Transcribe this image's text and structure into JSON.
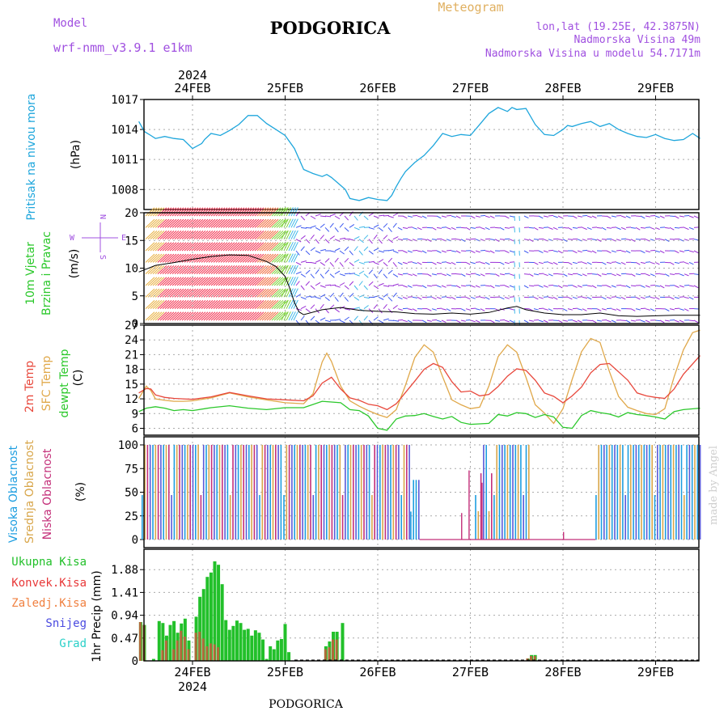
{
  "header": {
    "title": "PODGORICA",
    "meteogram": "Meteogram",
    "model_label": "Model",
    "model_name": "wrf-nmm_v3.9.1  e1km",
    "lonlat": "lon,lat (19.25E, 42.3875N)",
    "elevation": "Nadmorska Visina 49m",
    "model_elevation": "Nadmorska Visina u modelu 54.7171m",
    "year": "2024",
    "footer": "PODGORICA",
    "credit": "made by Angel"
  },
  "colors": {
    "pressure": "#1ea6dc",
    "wind_calm": "#f2304e",
    "wind_mid": "#3d59f0",
    "wind_low": "#9a2fd6",
    "t2m": "#e8483c",
    "tsfc": "#e0a84a",
    "dewp": "#2bc82b",
    "cloud_high": "#1e9ee0",
    "cloud_mid": "#d8a64a",
    "cloud_low": "#c4307a",
    "precip_total": "#22c02a",
    "precip_conv": "#e83838",
    "precip_frz": "#f08040",
    "snow": "#4a4ae0",
    "hail": "#2ad0c8",
    "purple_text": "#a050e0",
    "orange_text": "#e0b060"
  },
  "chart_data": [
    {
      "type": "line",
      "panel": "pressure",
      "ylabel_left": "Pritisak na nivou mora",
      "unit": "(hPa)",
      "x_ticks": [
        "24FEB",
        "25FEB",
        "26FEB",
        "27FEB",
        "28FEB",
        "29FEB"
      ],
      "yticks": [
        1008,
        1011,
        1014,
        1017
      ],
      "ylim": [
        1006,
        1017
      ],
      "series": [
        {
          "x": [
            -0.58,
            -0.52,
            -0.45,
            -0.4,
            -0.3,
            -0.2,
            -0.1,
            0.0,
            0.1,
            0.13,
            0.2,
            0.3,
            0.4,
            0.5,
            0.6,
            0.7,
            0.8,
            0.9,
            1.0,
            1.1,
            1.2,
            1.3,
            1.4,
            1.45,
            1.5,
            1.6,
            1.65,
            1.7,
            1.8,
            1.9,
            2.0,
            2.1,
            2.15,
            2.2,
            2.25,
            2.3,
            2.4,
            2.5,
            2.6,
            2.7,
            2.8,
            2.9,
            3.0,
            3.1,
            3.2,
            3.3,
            3.4,
            3.45,
            3.5,
            3.6,
            3.7,
            3.8,
            3.9,
            4.0,
            4.05,
            4.1,
            4.2,
            4.3,
            4.4,
            4.5,
            4.6,
            4.7,
            4.8,
            4.9,
            5.0,
            5.1,
            5.2,
            5.3,
            5.4,
            5.48
          ],
          "y": [
            1014.8,
            1013.8,
            1013.4,
            1013.1,
            1013.3,
            1013.1,
            1013.0,
            1012.1,
            1012.6,
            1013.0,
            1013.6,
            1013.4,
            1013.9,
            1014.5,
            1015.4,
            1015.4,
            1014.6,
            1014.0,
            1013.4,
            1012.1,
            1010.0,
            1009.6,
            1009.3,
            1009.5,
            1009.2,
            1008.4,
            1008.0,
            1007.1,
            1006.9,
            1007.2,
            1007.0,
            1006.9,
            1007.4,
            1008.3,
            1009.1,
            1009.8,
            1010.7,
            1011.4,
            1012.4,
            1013.6,
            1013.3,
            1013.5,
            1013.4,
            1014.5,
            1015.6,
            1016.2,
            1015.8,
            1016.2,
            1016.0,
            1016.1,
            1014.5,
            1013.5,
            1013.4,
            1014.0,
            1014.4,
            1014.3,
            1014.6,
            1014.8,
            1014.3,
            1014.6,
            1014.0,
            1013.6,
            1013.3,
            1013.2,
            1013.5,
            1013.1,
            1012.9,
            1013.0,
            1013.6,
            1013.1
          ]
        }
      ]
    },
    {
      "type": "line",
      "panel": "wind",
      "ylabel_left_1": "10m Vjetar",
      "ylabel_left_2": "Brzina i Pravac",
      "unit": "(m/s)",
      "compass": {
        "n": "N",
        "s": "S",
        "e": "E",
        "w": "W"
      },
      "yticks": [
        0,
        5,
        10,
        15,
        20
      ],
      "ylim": [
        0,
        20
      ],
      "series": [
        {
          "x": [
            -0.58,
            -0.4,
            -0.2,
            0.0,
            0.2,
            0.4,
            0.6,
            0.8,
            0.9,
            1.0,
            1.05,
            1.1,
            1.15,
            1.2,
            1.4,
            1.6,
            1.8,
            2.0,
            2.2,
            2.4,
            2.6,
            2.8,
            3.0,
            3.2,
            3.4,
            3.5,
            3.6,
            3.8,
            4.0,
            4.2,
            4.4,
            4.6,
            4.8,
            5.0,
            5.2,
            5.48
          ],
          "y": [
            9.3,
            10.5,
            11.0,
            11.6,
            12.1,
            12.4,
            12.3,
            11.2,
            10.3,
            8.5,
            6.4,
            3.8,
            2.1,
            1.6,
            2.5,
            2.9,
            2.4,
            2.2,
            2.1,
            1.8,
            1.7,
            1.9,
            1.7,
            2.0,
            2.8,
            3.1,
            2.5,
            1.9,
            1.6,
            1.6,
            1.9,
            1.4,
            1.3,
            1.4,
            1.5,
            1.5
          ]
        }
      ]
    },
    {
      "type": "line",
      "panel": "temperature",
      "ylabel_t2m": "2m Temp",
      "ylabel_sfc": "SFC Temp",
      "ylabel_dewp": "dewpt Temp",
      "unit": "(C)",
      "yticks": [
        6,
        9,
        12,
        15,
        18,
        21,
        24,
        27
      ],
      "ylim": [
        4.6,
        27
      ],
      "series": [
        {
          "name": "2m Temp",
          "x": [
            -0.58,
            -0.5,
            -0.45,
            -0.4,
            -0.3,
            -0.2,
            -0.1,
            0.0,
            0.2,
            0.4,
            0.6,
            0.8,
            1.0,
            1.2,
            1.3,
            1.4,
            1.5,
            1.6,
            1.7,
            1.8,
            1.9,
            2.0,
            2.1,
            2.2,
            2.3,
            2.4,
            2.5,
            2.6,
            2.7,
            2.8,
            2.9,
            3.0,
            3.1,
            3.2,
            3.3,
            3.4,
            3.5,
            3.6,
            3.7,
            3.8,
            3.9,
            4.0,
            4.1,
            4.2,
            4.3,
            4.4,
            4.5,
            4.6,
            4.7,
            4.8,
            4.9,
            5.0,
            5.1,
            5.2,
            5.3,
            5.48
          ],
          "y": [
            13.2,
            14.1,
            14.0,
            12.8,
            12.3,
            12.1,
            12.0,
            11.9,
            12.4,
            13.3,
            12.6,
            12.0,
            11.8,
            11.6,
            12.6,
            15.2,
            16.4,
            14.0,
            12.2,
            11.7,
            10.9,
            10.6,
            9.8,
            11.0,
            13.3,
            15.6,
            18.0,
            19.2,
            18.4,
            15.5,
            13.4,
            13.6,
            12.6,
            12.9,
            14.5,
            16.6,
            18.1,
            17.8,
            15.8,
            13.2,
            12.5,
            11.2,
            12.6,
            14.4,
            17.3,
            19.0,
            19.2,
            17.5,
            15.8,
            13.2,
            12.6,
            12.3,
            12.1,
            14.0,
            17.0,
            20.8
          ]
        },
        {
          "name": "SFC Temp",
          "x": [
            -0.58,
            -0.5,
            -0.45,
            -0.4,
            -0.3,
            -0.2,
            -0.1,
            0.0,
            0.2,
            0.4,
            0.6,
            0.8,
            1.0,
            1.2,
            1.3,
            1.4,
            1.45,
            1.5,
            1.6,
            1.7,
            1.8,
            1.9,
            2.0,
            2.1,
            2.2,
            2.3,
            2.4,
            2.5,
            2.6,
            2.7,
            2.8,
            2.9,
            3.0,
            3.1,
            3.2,
            3.3,
            3.4,
            3.5,
            3.6,
            3.7,
            3.8,
            3.9,
            4.0,
            4.1,
            4.2,
            4.3,
            4.4,
            4.5,
            4.6,
            4.7,
            4.8,
            4.9,
            5.0,
            5.1,
            5.2,
            5.3,
            5.4,
            5.48
          ],
          "y": [
            12.1,
            14.6,
            13.7,
            12.0,
            11.7,
            11.5,
            11.5,
            11.6,
            12.2,
            13.2,
            12.4,
            11.8,
            11.2,
            11.0,
            13.0,
            19.5,
            21.3,
            19.6,
            14.6,
            11.6,
            10.5,
            9.6,
            8.8,
            8.2,
            9.8,
            14.8,
            20.4,
            23.0,
            21.5,
            16.5,
            11.8,
            10.8,
            10.0,
            10.3,
            14.6,
            20.6,
            23.0,
            21.5,
            16.4,
            10.8,
            9.1,
            7.0,
            10.0,
            16.0,
            21.6,
            24.3,
            23.5,
            17.6,
            12.5,
            10.3,
            9.6,
            9.0,
            8.8,
            10.0,
            16.5,
            22.0,
            25.5,
            26.0
          ]
        },
        {
          "name": "dewpt Temp",
          "x": [
            -0.58,
            -0.5,
            -0.4,
            -0.3,
            -0.2,
            -0.1,
            0.0,
            0.2,
            0.4,
            0.6,
            0.8,
            1.0,
            1.2,
            1.4,
            1.6,
            1.7,
            1.8,
            1.9,
            2.0,
            2.1,
            2.2,
            2.3,
            2.4,
            2.5,
            2.6,
            2.7,
            2.8,
            2.9,
            3.0,
            3.1,
            3.2,
            3.3,
            3.4,
            3.5,
            3.6,
            3.7,
            3.8,
            3.9,
            4.0,
            4.1,
            4.2,
            4.3,
            4.4,
            4.5,
            4.6,
            4.7,
            4.8,
            4.9,
            5.0,
            5.1,
            5.2,
            5.3,
            5.48
          ],
          "y": [
            9.4,
            10.1,
            10.4,
            10.1,
            9.6,
            9.8,
            9.6,
            10.2,
            10.6,
            10.1,
            9.8,
            10.2,
            10.2,
            11.5,
            11.2,
            9.8,
            9.6,
            8.5,
            6.0,
            5.6,
            7.9,
            8.5,
            8.6,
            9.0,
            8.4,
            7.9,
            8.4,
            7.2,
            6.8,
            6.9,
            7.0,
            8.8,
            8.5,
            9.2,
            9.0,
            8.2,
            8.8,
            8.3,
            6.2,
            6.0,
            8.6,
            9.6,
            9.2,
            8.9,
            8.3,
            9.2,
            8.8,
            8.6,
            8.3,
            7.9,
            9.4,
            9.8,
            10.1
          ]
        }
      ]
    },
    {
      "type": "bar",
      "panel": "cloud",
      "ylabel_high": "Visoka Oblacnost",
      "ylabel_mid": "Srednja Oblacnost",
      "ylabel_low": "Niska Oblacnost",
      "unit": "(%)",
      "yticks": [
        0,
        25,
        50,
        75,
        100
      ],
      "ylim": [
        0,
        100
      ],
      "regions": [
        {
          "from": -0.55,
          "to": 0.95,
          "high": 100,
          "mid": 100,
          "low": 100
        },
        {
          "from": 0.98,
          "to": 2.35,
          "high": 100,
          "mid": 100,
          "low": 100
        },
        {
          "from": 2.35,
          "to": 2.45,
          "high": 63,
          "mid": 0,
          "low": 0
        },
        {
          "from": 3.05,
          "to": 3.25,
          "high": 100,
          "mid": 30,
          "low": 70
        },
        {
          "from": 3.25,
          "to": 3.65,
          "high": 100,
          "mid": 100,
          "low": 0
        },
        {
          "from": 4.35,
          "to": 5.48,
          "high": 100,
          "mid": 100,
          "low": 0
        }
      ],
      "spikes": [
        {
          "x": 2.9,
          "value": 28,
          "series": "low"
        },
        {
          "x": 2.98,
          "value": 73,
          "series": "low"
        },
        {
          "x": 3.12,
          "value": 60,
          "series": "low"
        },
        {
          "x": 4.0,
          "value": 8,
          "series": "low"
        }
      ]
    },
    {
      "type": "bar",
      "panel": "precip",
      "ylabel_ukupna": "Ukupna Kisa",
      "ylabel_konvek": "Konvek.Kisa",
      "ylabel_zaledj": "Zaledj.Kisa",
      "ylabel_snijeg": "Snijeg",
      "ylabel_grad": "Grad",
      "ylabel_unit": "1hr Precip (mm)",
      "yticks": [
        0,
        0.47,
        0.94,
        1.41,
        1.88
      ],
      "ylim": [
        0,
        2.3
      ],
      "x_ticks": [
        "24FEB",
        "25FEB",
        "26FEB",
        "27FEB",
        "28FEB",
        "29FEB"
      ],
      "x": [
        -0.56,
        -0.52,
        -0.42,
        -0.36,
        -0.32,
        -0.28,
        -0.24,
        -0.2,
        -0.16,
        -0.12,
        -0.08,
        -0.04,
        0.0,
        0.04,
        0.08,
        0.12,
        0.16,
        0.2,
        0.24,
        0.28,
        0.32,
        0.36,
        0.4,
        0.44,
        0.48,
        0.52,
        0.56,
        0.6,
        0.64,
        0.68,
        0.72,
        0.76,
        0.8,
        0.84,
        0.88,
        0.92,
        0.96,
        1.0,
        1.04,
        1.44,
        1.48,
        1.52,
        1.56,
        1.62,
        3.62,
        3.66,
        3.7
      ],
      "values": [
        0.8,
        0.74,
        0.04,
        0.82,
        0.78,
        0.52,
        0.74,
        0.82,
        0.58,
        0.77,
        0.87,
        0.42,
        0.0,
        0.91,
        1.32,
        1.48,
        1.73,
        1.82,
        2.05,
        1.98,
        1.58,
        0.84,
        0.64,
        0.72,
        0.83,
        0.78,
        0.64,
        0.66,
        0.52,
        0.63,
        0.58,
        0.44,
        0.04,
        0.3,
        0.24,
        0.42,
        0.45,
        0.76,
        0.18,
        0.3,
        0.4,
        0.6,
        0.6,
        0.78,
        0.05,
        0.12,
        0.12
      ],
      "conv": [
        0.8,
        0.74,
        0.0,
        0.0,
        0.22,
        0.42,
        0.0,
        0.24,
        0.42,
        0.62,
        0.5,
        0.24,
        0.0,
        0.58,
        0.6,
        0.46,
        0.3,
        0.36,
        0.34,
        0.28,
        0.0,
        0.0,
        0.0,
        0.0,
        0.0,
        0.0,
        0.0,
        0.0,
        0.0,
        0.0,
        0.0,
        0.0,
        0.0,
        0.0,
        0.0,
        0.0,
        0.0,
        0.0,
        0.0,
        0.24,
        0.28,
        0.44,
        0.44,
        0.0,
        0.05,
        0.1,
        0.1
      ]
    }
  ]
}
